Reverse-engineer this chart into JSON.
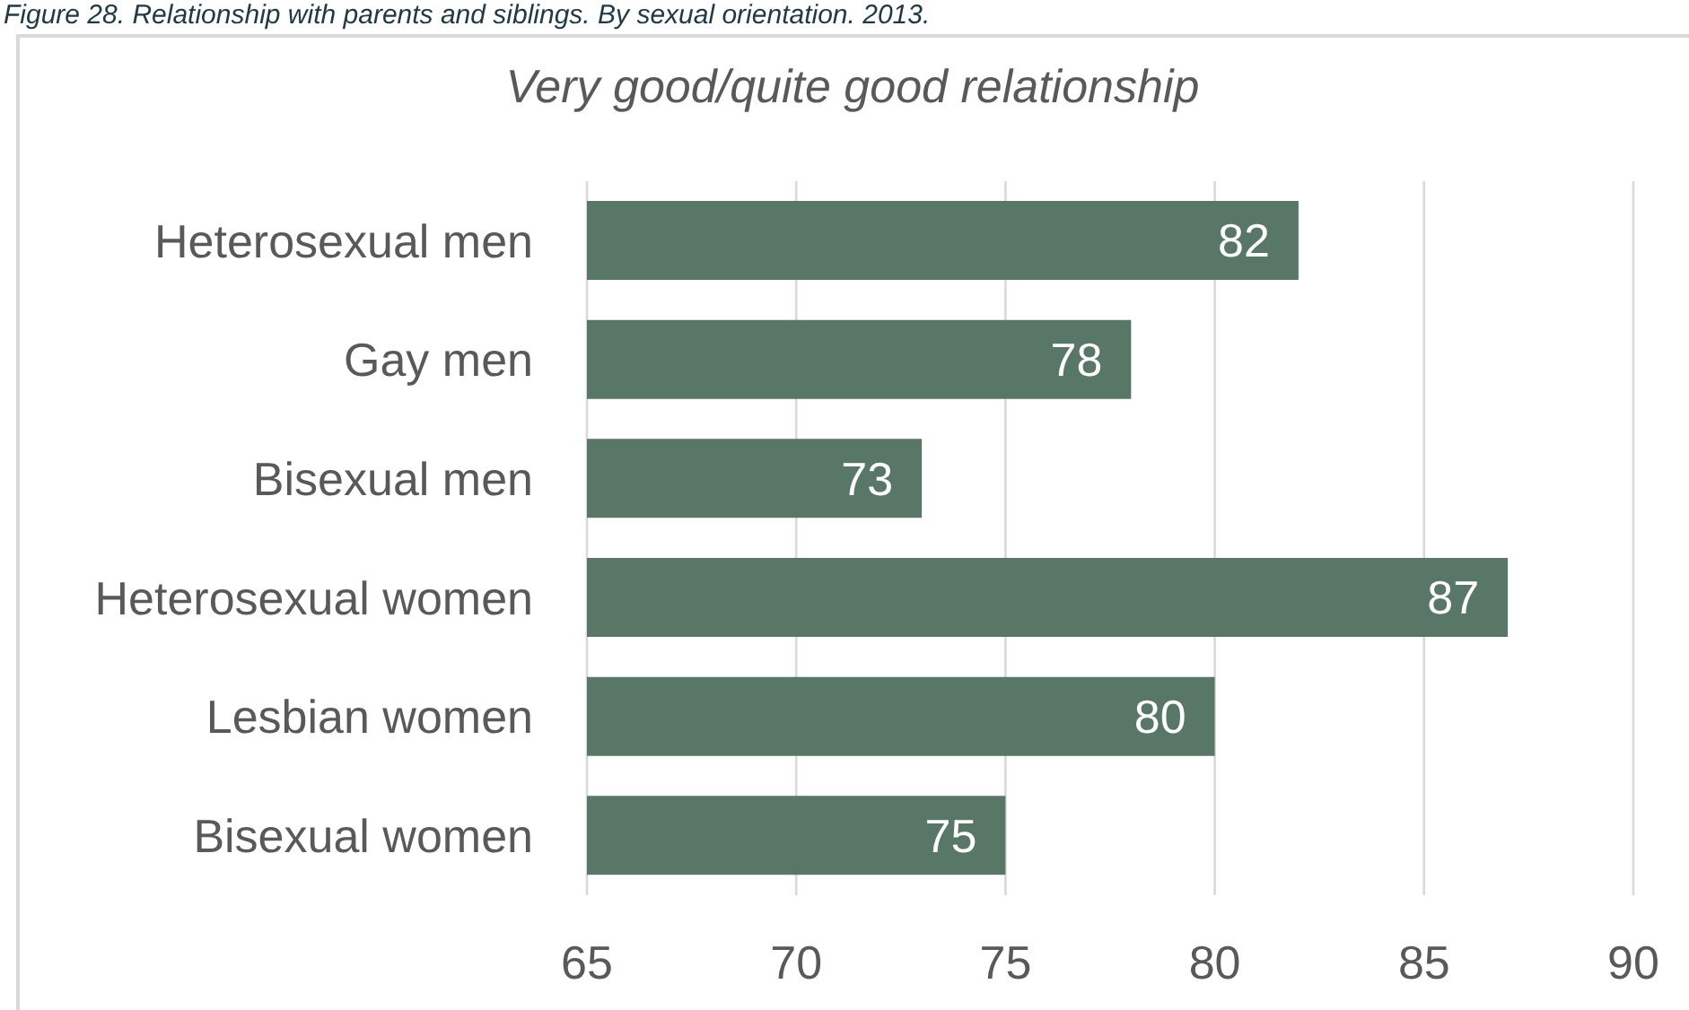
{
  "chart_data": {
    "type": "bar",
    "title": "Figure 28. Relationship with parents and siblings. By sexual orientation. 2013.",
    "subtitle": "Very good/quite good relationship",
    "categories": [
      "Heterosexual men",
      "Gay men",
      "Bisexual men",
      "Heterosexual women",
      "Lesbian women",
      "Bisexual women"
    ],
    "values": [
      82,
      78,
      73,
      87,
      80,
      75
    ],
    "color": "#587766",
    "orientation": "horizontal",
    "xlim": [
      65,
      90
    ],
    "xticks": [
      65,
      70,
      75,
      80,
      85,
      90
    ],
    "grid": "x",
    "data_labels": true
  }
}
